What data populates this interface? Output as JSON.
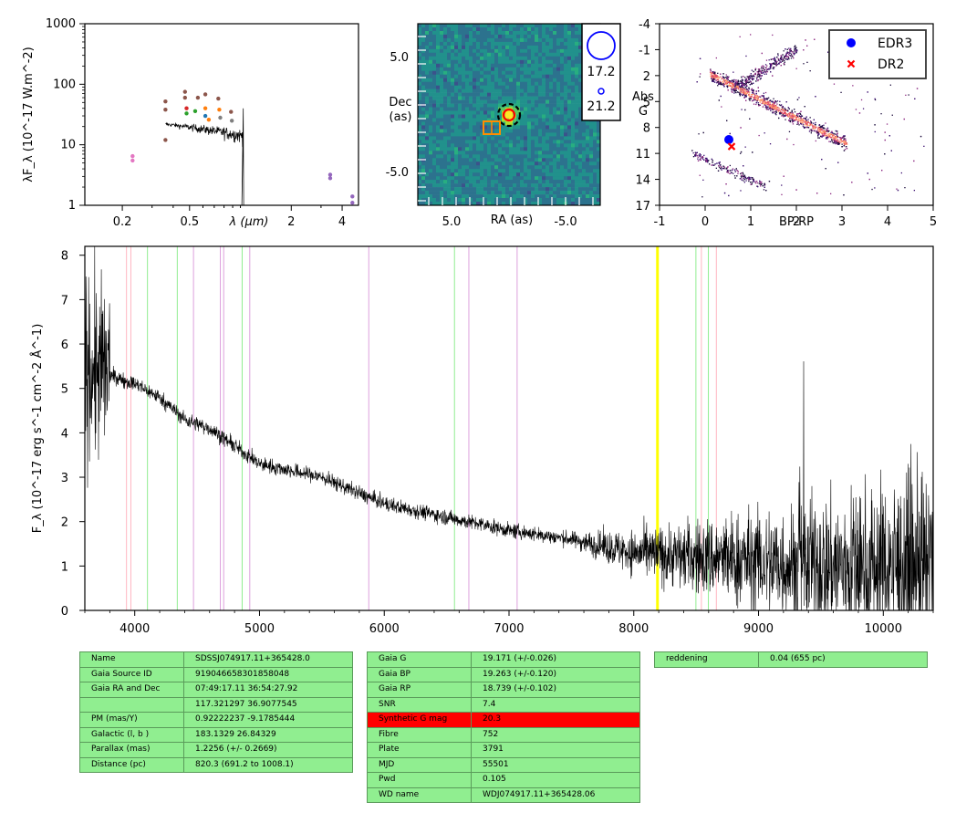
{
  "sed": {
    "ylabel": "λF_λ (10^-17 W.m^-2)",
    "xlabel": "λ (μm)",
    "yticks": [
      "1",
      "10",
      "100",
      "1000"
    ],
    "xticks": [
      "0.2",
      "0.5",
      "2",
      "4"
    ]
  },
  "image": {
    "ylabel_line1": "Dec",
    "ylabel_line2": "(as)",
    "xlabel": "RA (as)",
    "yticks": [
      "5.0",
      "-5.0"
    ],
    "xticks": [
      "5.0",
      "-5.0"
    ],
    "mag_legend": [
      "17.2",
      "21.2"
    ],
    "colors": {
      "background": "#2a6f8e",
      "target_circle": "#ff0000",
      "box": "#ff8c00",
      "legend": "#0000ff"
    }
  },
  "hrd": {
    "ylabel_line1": "Abs",
    "ylabel_line2": "G",
    "xlabel": "BP-RP",
    "yticks": [
      "-4",
      "-1",
      "2",
      "5",
      "8",
      "11",
      "14",
      "17"
    ],
    "xticks": [
      "-1",
      "0",
      "1",
      "2",
      "3",
      "4",
      "5"
    ],
    "legend": [
      {
        "label": "EDR3",
        "color": "#0000ff",
        "marker": "circle"
      },
      {
        "label": "DR2",
        "color": "#ff0000",
        "marker": "x"
      }
    ]
  },
  "spectrum": {
    "ylabel": "F_λ (10^-17 erg s^-1 cm^-2 Å^-1)",
    "yticks": [
      "0",
      "1",
      "2",
      "3",
      "4",
      "5",
      "6",
      "7",
      "8"
    ],
    "xticks": [
      "4000",
      "5000",
      "6000",
      "7000",
      "8000",
      "9000",
      "10000"
    ]
  },
  "chart_data": [
    {
      "type": "scatter",
      "panel": "sed",
      "xscale": "log",
      "yscale": "log",
      "xlim": [
        0.12,
        5.0
      ],
      "ylim": [
        1,
        1000
      ],
      "points": [
        {
          "x": 0.23,
          "y": 6.5,
          "color": "#e377c2"
        },
        {
          "x": 0.23,
          "y": 5.5,
          "color": "#e377c2"
        },
        {
          "x": 0.36,
          "y": 52,
          "color": "#8c564b"
        },
        {
          "x": 0.36,
          "y": 38,
          "color": "#8c564b"
        },
        {
          "x": 0.36,
          "y": 12,
          "color": "#8c564b"
        },
        {
          "x": 0.47,
          "y": 75,
          "color": "#8c564b"
        },
        {
          "x": 0.47,
          "y": 60,
          "color": "#8c564b"
        },
        {
          "x": 0.48,
          "y": 40,
          "color": "#d62728"
        },
        {
          "x": 0.48,
          "y": 33,
          "color": "#2ca02c"
        },
        {
          "x": 0.54,
          "y": 36,
          "color": "#2ca02c"
        },
        {
          "x": 0.56,
          "y": 60,
          "color": "#8c564b"
        },
        {
          "x": 0.62,
          "y": 68,
          "color": "#8c564b"
        },
        {
          "x": 0.62,
          "y": 40,
          "color": "#ff7f0e"
        },
        {
          "x": 0.62,
          "y": 30,
          "color": "#1f77b4"
        },
        {
          "x": 0.65,
          "y": 26,
          "color": "#ff7f0e"
        },
        {
          "x": 0.74,
          "y": 58,
          "color": "#8c564b"
        },
        {
          "x": 0.75,
          "y": 38,
          "color": "#ff7f0e"
        },
        {
          "x": 0.76,
          "y": 28,
          "color": "#7f7f7f"
        },
        {
          "x": 0.88,
          "y": 35,
          "color": "#8c564b"
        },
        {
          "x": 0.89,
          "y": 25,
          "color": "#7f7f7f"
        },
        {
          "x": 3.4,
          "y": 3.2,
          "color": "#9467bd"
        },
        {
          "x": 3.4,
          "y": 2.8,
          "color": "#9467bd"
        },
        {
          "x": 4.6,
          "y": 1.4,
          "color": "#9467bd"
        },
        {
          "x": 4.6,
          "y": 1.1,
          "color": "#9467bd"
        }
      ],
      "spectrum_line": {
        "x_start": 0.36,
        "x_end": 1.04,
        "y_start": 22,
        "y_end": 14,
        "color": "#000000"
      }
    },
    {
      "type": "heatmap",
      "panel": "image",
      "xlim": [
        10,
        -10
      ],
      "ylim": [
        -10,
        10
      ],
      "target": {
        "ra": 0,
        "dec": 0,
        "mag": 20.3
      },
      "neighbour_box": {
        "ra": -1.8,
        "dec": -1.6
      },
      "legend_mags": [
        17.2,
        21.2
      ]
    },
    {
      "type": "scatter",
      "panel": "hrd",
      "xlim": [
        -1,
        5
      ],
      "ylim": [
        17,
        -4
      ],
      "series": [
        {
          "name": "EDR3",
          "x": [
            0.52
          ],
          "y": [
            9.4
          ]
        },
        {
          "name": "DR2",
          "x": [
            0.58
          ],
          "y": [
            10.2
          ]
        }
      ],
      "background": "density"
    },
    {
      "type": "line",
      "panel": "spectrum",
      "xlim": [
        3600,
        10400
      ],
      "ylim": [
        0,
        8.2
      ],
      "continuum": [
        [
          3600,
          5.5
        ],
        [
          3800,
          5.3
        ],
        [
          4000,
          5.1
        ],
        [
          4200,
          4.8
        ],
        [
          4400,
          4.3
        ],
        [
          4600,
          4.1
        ],
        [
          4800,
          3.7
        ],
        [
          5000,
          3.3
        ],
        [
          5500,
          3.0
        ],
        [
          6000,
          2.4
        ],
        [
          6500,
          2.1
        ],
        [
          7000,
          1.8
        ],
        [
          7500,
          1.6
        ],
        [
          8000,
          1.3
        ],
        [
          8500,
          1.2
        ],
        [
          9000,
          1.1
        ],
        [
          9500,
          1.0
        ],
        [
          10000,
          1.0
        ],
        [
          10400,
          1.0
        ]
      ],
      "lines": [
        {
          "x": 3934,
          "color": "#ffb6c1"
        },
        {
          "x": 3969,
          "color": "#ffb6c1"
        },
        {
          "x": 4102,
          "color": "#90ee90"
        },
        {
          "x": 4341,
          "color": "#90ee90"
        },
        {
          "x": 4471,
          "color": "#dda0dd"
        },
        {
          "x": 4686,
          "color": "#dda0dd"
        },
        {
          "x": 4713,
          "color": "#dda0dd"
        },
        {
          "x": 4861,
          "color": "#90ee90"
        },
        {
          "x": 4922,
          "color": "#dda0dd"
        },
        {
          "x": 5876,
          "color": "#dda0dd"
        },
        {
          "x": 6563,
          "color": "#90ee90"
        },
        {
          "x": 6678,
          "color": "#dda0dd"
        },
        {
          "x": 7065,
          "color": "#dda0dd"
        },
        {
          "x": 8190,
          "color": "#ffff00"
        },
        {
          "x": 8498,
          "color": "#90ee90"
        },
        {
          "x": 8542,
          "color": "#ffb6c1"
        },
        {
          "x": 8598,
          "color": "#90ee90"
        },
        {
          "x": 8662,
          "color": "#ffb6c1"
        }
      ]
    }
  ],
  "table1": [
    [
      "Name",
      "SDSSJ074917.11+365428.0"
    ],
    [
      "Gaia Source ID",
      "919046658301858048"
    ],
    [
      "Gaia RA and Dec",
      "07:49:17.11     36:54:27.92"
    ],
    [
      "",
      "117.321297     36.9077545"
    ],
    [
      "PM (mas/Y)",
      "0.92222237     -9.1785444"
    ],
    [
      "Galactic (l, b )",
      "183.1329     26.84329"
    ],
    [
      "Parallax (mas)",
      "1.2256 (+/- 0.2669)"
    ],
    [
      "Distance (pc)",
      "820.3 (691.2 to 1008.1)"
    ]
  ],
  "table2": [
    [
      "Gaia G",
      "19.171 (+/-0.026)"
    ],
    [
      "Gaia BP",
      "19.263 (+/-0.120)"
    ],
    [
      "Gaia RP",
      "18.739 (+/-0.102)"
    ],
    [
      "SNR",
      "7.4"
    ],
    [
      "Synthetic G mag",
      "20.3"
    ],
    [
      "Fibre",
      "752"
    ],
    [
      "Plate",
      "3791"
    ],
    [
      "MJD",
      "55501"
    ],
    [
      "Pwd",
      "0.105"
    ],
    [
      "WD name",
      "WDJ074917.11+365428.06"
    ]
  ],
  "table3": [
    [
      "reddening",
      "0.04 (655 pc)"
    ]
  ]
}
